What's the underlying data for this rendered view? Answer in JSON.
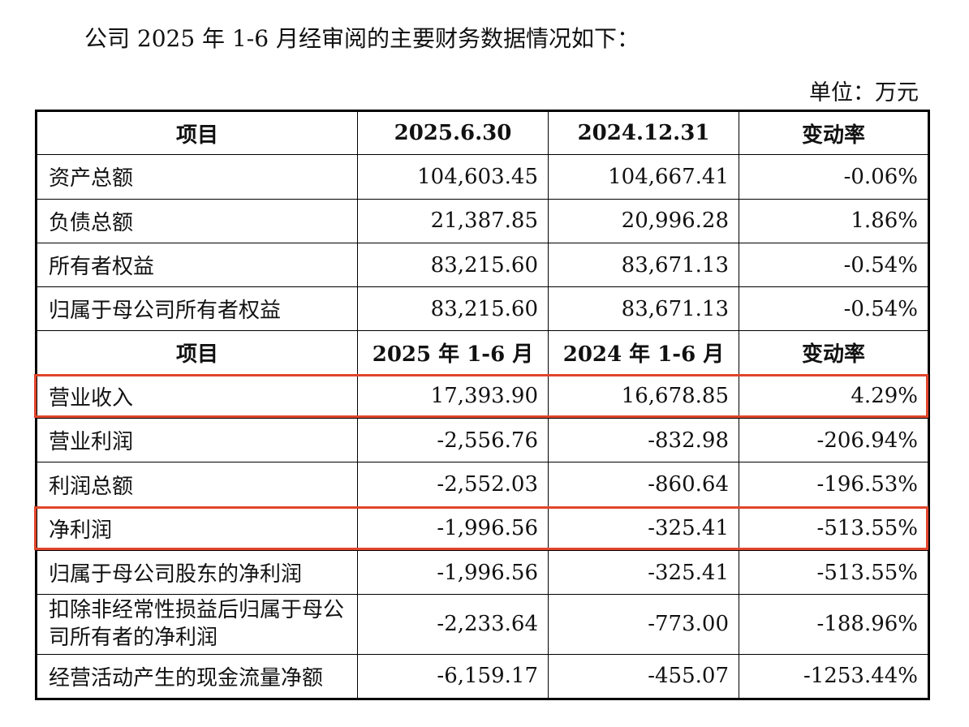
{
  "intro": "公司 2025 年 1-6 月经审阅的主要财务数据情况如下：",
  "unit": "单位：万元",
  "balance_header": [
    "项目",
    "2025.6.30",
    "2024.12.31",
    "变动率"
  ],
  "balance_rows": [
    [
      "资产总额",
      "104,603.45",
      "104,667.41",
      "-0.06%"
    ],
    [
      "负债总额",
      "21,387.85",
      "20,996.28",
      "1.86%"
    ],
    [
      "所有者权益",
      "83,215.60",
      "83,671.13",
      "-0.54%"
    ],
    [
      "归属于母公司所有者权益",
      "83,215.60",
      "83,671.13",
      "-0.54%"
    ]
  ],
  "income_header": [
    "项目",
    "2025 年 1-6 月",
    "2024 年 1-6 月",
    "变动率"
  ],
  "income_rows": [
    [
      "营业收入",
      "17,393.90",
      "16,678.85",
      "4.29%"
    ],
    [
      "营业利润",
      "-2,556.76",
      "-832.98",
      "-206.94%"
    ],
    [
      "利润总额",
      "-2,552.03",
      "-860.64",
      "-196.53%"
    ],
    [
      "净利润",
      "-1,996.56",
      "-325.41",
      "-513.55%"
    ],
    [
      "归属于母公司股东的净利润",
      "-1,996.56",
      "-325.41",
      "-513.55%"
    ],
    [
      "扣除非经常性损益后归属于母公司所有者的净利润",
      "-2,233.64",
      "-773.00",
      "-188.96%"
    ],
    [
      "经营活动产生的现金流量净额",
      "-6,159.17",
      "-455.07",
      "-1253.44%"
    ]
  ],
  "highlight_color": "#e0452b"
}
